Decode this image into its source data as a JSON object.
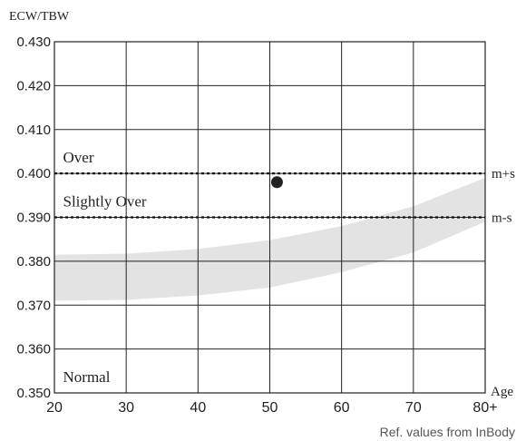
{
  "chart_data": {
    "type": "scatter",
    "ylabel": "ECW/TBW",
    "xlabel": "Age",
    "footer": "Ref. values  from InBody",
    "xlim": [
      20,
      80
    ],
    "ylim": [
      0.35,
      0.43
    ],
    "x_ticks": [
      {
        "value": 20,
        "label": "20"
      },
      {
        "value": 30,
        "label": "30"
      },
      {
        "value": 40,
        "label": "40"
      },
      {
        "value": 50,
        "label": "50"
      },
      {
        "value": 60,
        "label": "60"
      },
      {
        "value": 70,
        "label": "70"
      },
      {
        "value": 80,
        "label": "80+"
      }
    ],
    "y_ticks": [
      {
        "value": 0.35,
        "label": "0.350"
      },
      {
        "value": 0.36,
        "label": "0.360"
      },
      {
        "value": 0.37,
        "label": "0.370"
      },
      {
        "value": 0.38,
        "label": "0.380"
      },
      {
        "value": 0.39,
        "label": "0.390"
      },
      {
        "value": 0.4,
        "label": "0.400"
      },
      {
        "value": 0.41,
        "label": "0.410"
      },
      {
        "value": 0.42,
        "label": "0.420"
      },
      {
        "value": 0.43,
        "label": "0.430"
      }
    ],
    "grid": true,
    "reference_lines": [
      {
        "y": 0.4,
        "label": "m+s"
      },
      {
        "y": 0.39,
        "label": "m-s"
      }
    ],
    "zone_labels": [
      {
        "label": "Over",
        "x": 21.2,
        "y": 0.4025
      },
      {
        "label": "Slightly Over",
        "x": 21.2,
        "y": 0.3925
      },
      {
        "label": "Normal",
        "x": 21.2,
        "y": 0.3525
      }
    ],
    "reference_band": {
      "x": [
        20,
        30,
        40,
        50,
        60,
        70,
        80
      ],
      "upper": [
        0.3815,
        0.3817,
        0.3828,
        0.3848,
        0.388,
        0.3925,
        0.399
      ],
      "lower": [
        0.371,
        0.3712,
        0.3722,
        0.374,
        0.3775,
        0.382,
        0.389
      ],
      "color": "#e3e3e3"
    },
    "points": [
      {
        "x": 51,
        "y": 0.398
      }
    ],
    "point_color": "#222222"
  }
}
